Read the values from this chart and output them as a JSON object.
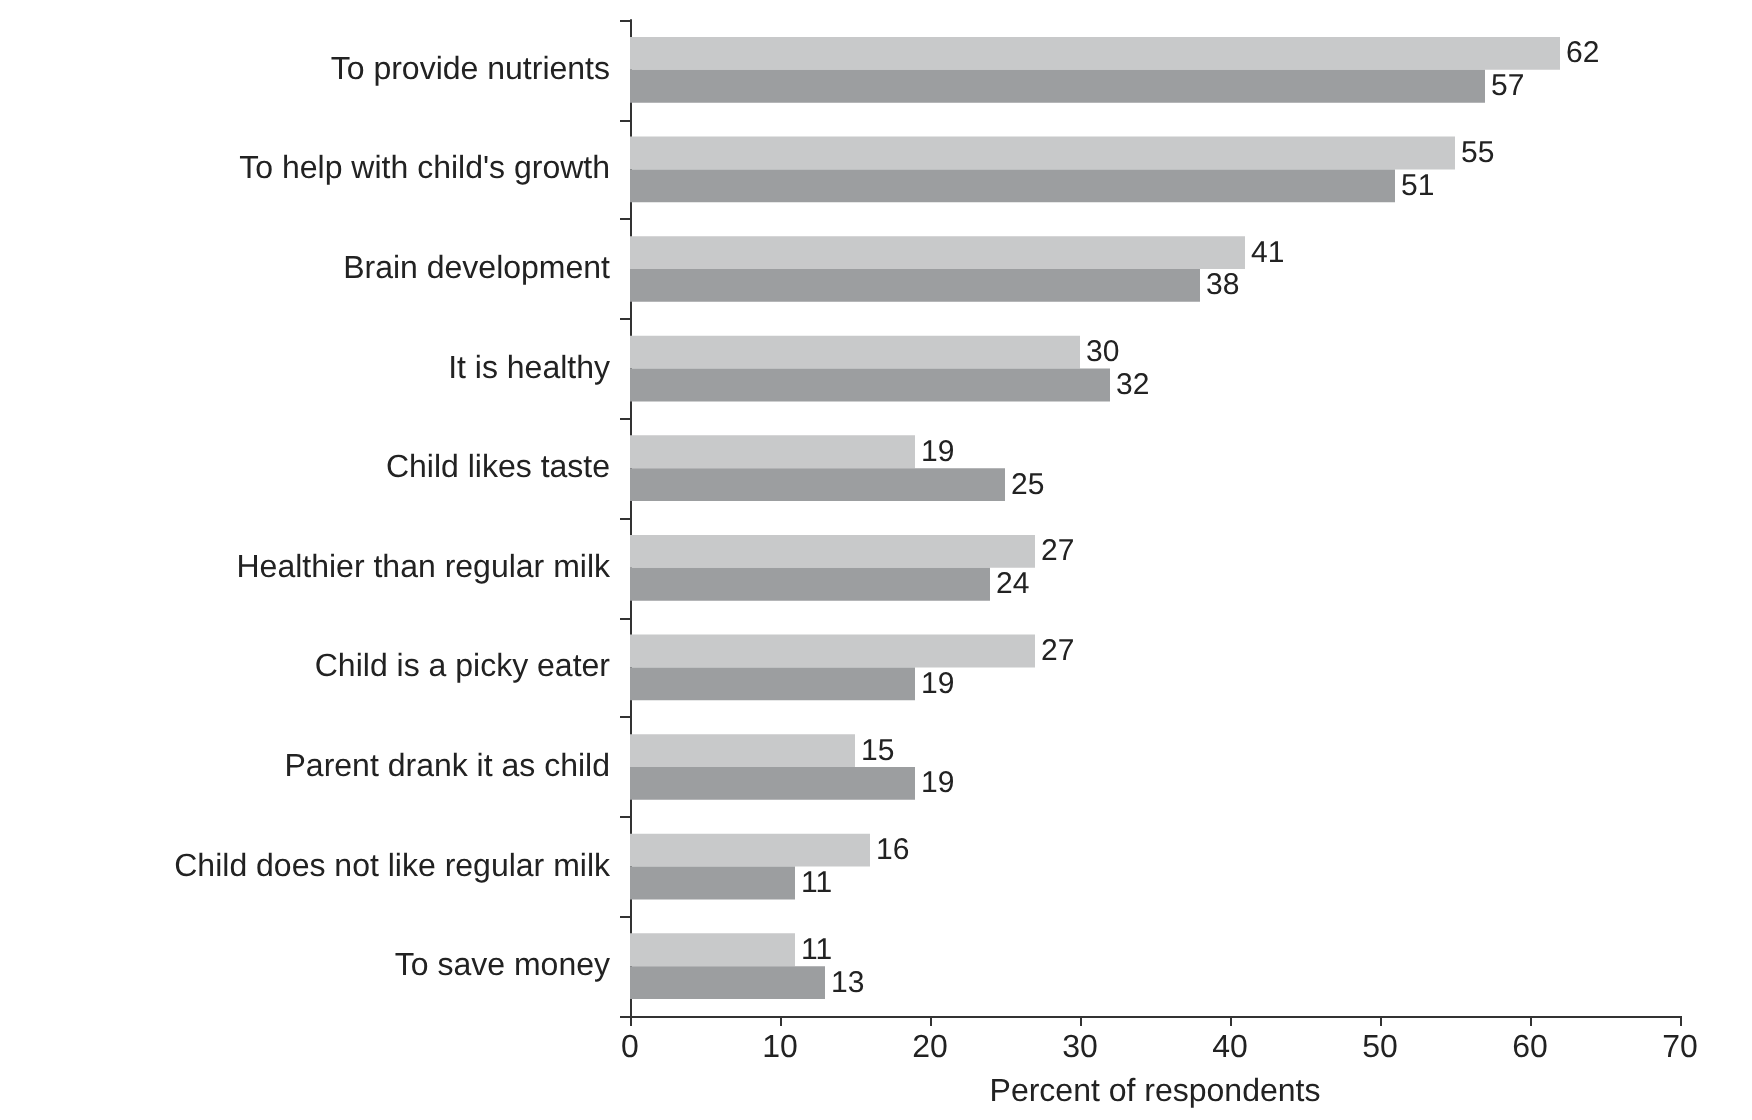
{
  "chart_data": {
    "type": "bar",
    "orientation": "horizontal",
    "xlabel": "Percent of respondents",
    "categories": [
      "To provide nutrients",
      "To help with child's growth",
      "Brain development",
      "It is healthy",
      "Child likes taste",
      "Healthier than regular milk",
      "Child is a picky eater",
      "Parent drank it as child",
      "Child does not like regular milk",
      "To save money"
    ],
    "series": [
      {
        "color": "#c8c9ca",
        "values": [
          62,
          55,
          41,
          30,
          19,
          27,
          27,
          15,
          16,
          11
        ]
      },
      {
        "color": "#9c9ea0",
        "values": [
          57,
          51,
          38,
          32,
          25,
          24,
          19,
          19,
          11,
          13
        ]
      }
    ],
    "xlim": [
      0,
      70
    ],
    "xticks": [
      0,
      10,
      20,
      30,
      40,
      50,
      60,
      70
    ],
    "data_labels": true
  }
}
